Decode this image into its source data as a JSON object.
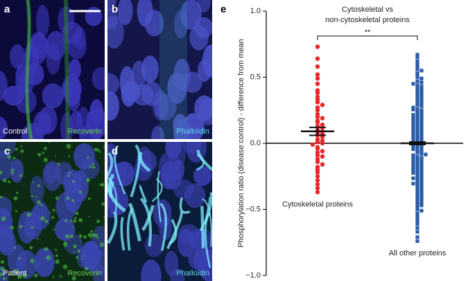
{
  "panels": [
    {
      "letter": "a",
      "condition": "Control",
      "stain": "Recoverin"
    },
    {
      "letter": "b",
      "stain": "Phalloidin"
    },
    {
      "letter": "c",
      "condition": "Patient",
      "stain": "Recoverin"
    },
    {
      "letter": "d",
      "stain": "Phalloidin"
    }
  ],
  "chart_data": {
    "type": "scatter",
    "panel_letter": "e",
    "title": "Cytoskeletal vs non-cytoskeletal proteins",
    "ylabel": "Phosphorylation ratio (disease:control) - difference from mean",
    "significance": "**",
    "ylim": [
      -1.0,
      1.0
    ],
    "yticks": [
      {
        "value": 1.0,
        "label": "1.0"
      },
      {
        "value": 0.5,
        "label": "0.5"
      },
      {
        "value": 0.0,
        "label": "0.0"
      },
      {
        "value": -0.5,
        "label": "−0.5"
      },
      {
        "value": -1.0,
        "label": "−1.0"
      }
    ],
    "hline": 0,
    "series": [
      {
        "name": "Cytoskeletal proteins",
        "color": "#e8262a",
        "marker": "circle",
        "mean": 0.09,
        "error": 0.03,
        "values": [
          0.73,
          0.64,
          0.58,
          0.52,
          0.49,
          0.45,
          0.4,
          0.38,
          0.35,
          0.33,
          0.31,
          0.29,
          0.27,
          0.25,
          0.22,
          0.2,
          0.19,
          0.17,
          0.16,
          0.14,
          0.13,
          0.12,
          0.1,
          0.09,
          0.08,
          0.07,
          0.06,
          0.05,
          0.03,
          0.02,
          0.01,
          0.0,
          -0.01,
          -0.03,
          -0.04,
          -0.06,
          -0.07,
          -0.09,
          -0.1,
          -0.12,
          -0.14,
          -0.16,
          -0.18,
          -0.2,
          -0.22,
          -0.25,
          -0.28,
          -0.31,
          -0.34,
          -0.37
        ]
      },
      {
        "name": "All other proteins",
        "color": "#2a5caa",
        "marker": "square",
        "mean": 0.0,
        "error": 0.01,
        "values": [
          0.67,
          0.65,
          0.62,
          0.6,
          0.58,
          0.56,
          0.55,
          0.53,
          0.52,
          0.5,
          0.49,
          0.47,
          0.46,
          0.45,
          0.44,
          0.43,
          0.42,
          0.41,
          0.4,
          0.39,
          0.38,
          0.37,
          0.36,
          0.35,
          0.34,
          0.33,
          0.32,
          0.31,
          0.3,
          0.29,
          0.28,
          0.27,
          0.26,
          0.25,
          0.24,
          0.23,
          0.22,
          0.21,
          0.2,
          0.19,
          0.18,
          0.17,
          0.16,
          0.15,
          0.14,
          0.13,
          0.12,
          0.11,
          0.1,
          0.09,
          0.08,
          0.07,
          0.06,
          0.05,
          0.04,
          0.03,
          0.02,
          0.01,
          0.0,
          -0.01,
          -0.02,
          -0.03,
          -0.04,
          -0.05,
          -0.06,
          -0.07,
          -0.08,
          -0.09,
          -0.1,
          -0.11,
          -0.12,
          -0.13,
          -0.14,
          -0.15,
          -0.16,
          -0.17,
          -0.18,
          -0.19,
          -0.2,
          -0.21,
          -0.22,
          -0.23,
          -0.24,
          -0.25,
          -0.26,
          -0.27,
          -0.28,
          -0.29,
          -0.3,
          -0.31,
          -0.32,
          -0.33,
          -0.34,
          -0.35,
          -0.36,
          -0.37,
          -0.38,
          -0.39,
          -0.4,
          -0.41,
          -0.42,
          -0.43,
          -0.44,
          -0.45,
          -0.46,
          -0.47,
          -0.48,
          -0.5,
          -0.51,
          -0.53,
          -0.55,
          -0.57,
          -0.59,
          -0.61,
          -0.64,
          -0.67,
          -0.71,
          -0.74,
          0.295,
          0.255,
          0.215,
          0.175,
          0.135,
          0.095,
          0.055,
          0.015,
          -0.025,
          -0.065,
          -0.105,
          -0.145,
          -0.185,
          -0.225,
          -0.265,
          -0.305,
          0.195,
          0.115,
          0.035,
          -0.045,
          -0.125,
          -0.205,
          0.075,
          -0.085,
          0.155,
          -0.165
        ]
      }
    ]
  }
}
